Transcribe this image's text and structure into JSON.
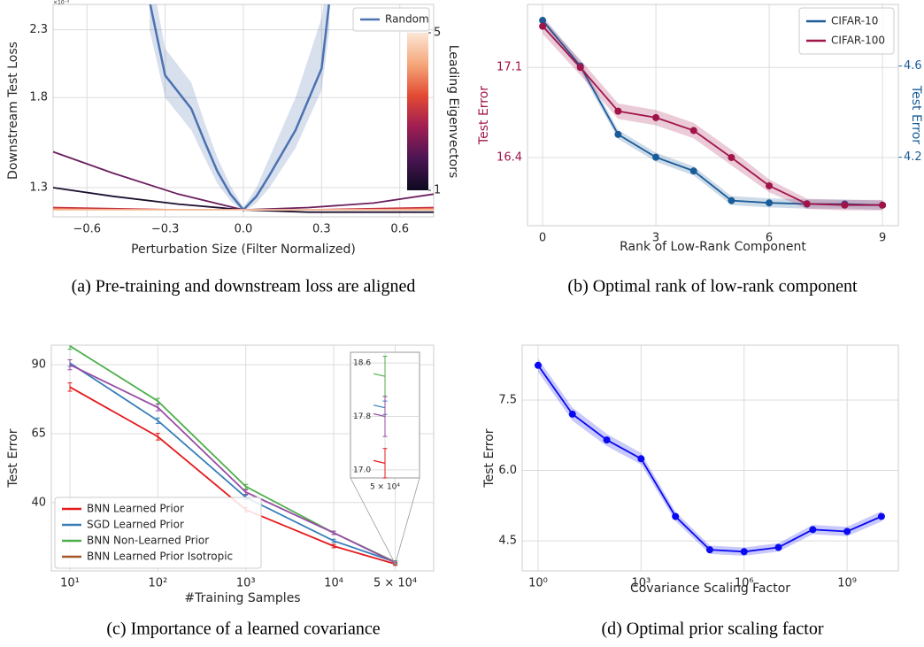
{
  "chart_data": [
    {
      "type": "line",
      "caption": "(a) Pre-training and downstream loss are aligned",
      "xlabel": "Perturbation Size (Filter Normalized)",
      "ylabel": "Downstream Test Loss",
      "offset_label": "×10⁻²",
      "yscale": "log",
      "grid": true,
      "legend": "upper right",
      "xlim": [
        -0.73,
        0.73
      ],
      "ylim": [
        1.17,
        2.52
      ],
      "xticks": [
        {
          "value": -0.6,
          "label": "−0.6"
        },
        {
          "value": -0.3,
          "label": "−0.3"
        },
        {
          "value": 0,
          "label": "0.0"
        },
        0.3,
        0.6
      ],
      "yticks": [
        1.3,
        1.8,
        2.3
      ],
      "series": [
        {
          "name": "Random",
          "color": "#4c72b0",
          "x": [
            -0.36,
            -0.3,
            -0.2,
            -0.15,
            -0.1,
            -0.05,
            0,
            0.05,
            0.1,
            0.2,
            0.3,
            0.33
          ],
          "values": [
            2.55,
            1.95,
            1.73,
            1.54,
            1.38,
            1.27,
            1.2,
            1.26,
            1.36,
            1.6,
            2.0,
            2.55
          ],
          "lower": [
            2.3,
            1.8,
            1.6,
            1.45,
            1.32,
            1.24,
            1.19,
            1.23,
            1.3,
            1.5,
            1.85,
            2.3
          ],
          "upper": [
            2.9,
            2.15,
            1.9,
            1.65,
            1.45,
            1.31,
            1.21,
            1.3,
            1.45,
            1.8,
            2.4,
            2.9
          ]
        },
        {
          "color": "#1c0f2e",
          "x": [
            -0.73,
            -0.5,
            -0.25,
            0,
            0.25,
            0.5,
            0.73
          ],
          "values": [
            1.3,
            1.26,
            1.225,
            1.2,
            1.19,
            1.19,
            1.19
          ]
        },
        {
          "color": "#6b1f5e",
          "x": [
            -0.73,
            -0.5,
            -0.25,
            0,
            0.25,
            0.5,
            0.73
          ],
          "values": [
            1.48,
            1.37,
            1.27,
            1.2,
            1.21,
            1.23,
            1.27
          ]
        },
        {
          "color": "#c4303f",
          "x": [
            -0.73,
            -0.5,
            -0.25,
            0,
            0.25,
            0.5,
            0.73
          ],
          "values": [
            1.21,
            1.205,
            1.2,
            1.2,
            1.2,
            1.205,
            1.21
          ]
        },
        {
          "color": "#f07050",
          "x": [
            -0.73,
            -0.5,
            -0.25,
            0,
            0.25,
            0.5,
            0.73
          ],
          "values": [
            1.205,
            1.2,
            1.2,
            1.2,
            1.2,
            1.2,
            1.205
          ]
        },
        {
          "color": "#f6c9a8",
          "x": [
            -0.73,
            -0.5,
            -0.25,
            0,
            0.25,
            0.5,
            0.73
          ],
          "values": [
            1.2,
            1.2,
            1.2,
            1.2,
            1.2,
            1.2,
            1.2
          ]
        }
      ],
      "colorbar": {
        "label": "Leading Eigenvectors",
        "ticks": [
          1,
          5
        ],
        "colors": [
          "#0d0a1e",
          "#4a1553",
          "#9e1d53",
          "#e34a33",
          "#f5a77a",
          "#fbe6d6"
        ]
      }
    },
    {
      "type": "line",
      "caption": "(b) Optimal rank of low-rank component",
      "xlabel": "Rank of Low-Rank Component",
      "ylabel": "Test Error",
      "y2label": "Test Error",
      "grid": true,
      "markers": true,
      "legend": "upper right",
      "xlim": [
        -0.4,
        9.42
      ],
      "ylim": [
        15.87,
        17.59
      ],
      "y2lim": [
        3.9,
        4.87
      ],
      "xticks": [
        0,
        3,
        6,
        9
      ],
      "yticks": [
        16.4,
        17.1
      ],
      "y2ticks": [
        4.2,
        4.6
      ],
      "x": [
        0,
        1,
        2,
        3,
        4,
        5,
        6,
        7,
        8,
        9
      ],
      "series": [
        {
          "name": "CIFAR-10",
          "color": "#1a5c99",
          "axis": "y2",
          "values": [
            4.8,
            4.6,
            4.3,
            4.2,
            4.14,
            4.01,
            4.0,
            3.995,
            3.995,
            3.99
          ],
          "lower": [
            4.78,
            4.58,
            4.28,
            4.18,
            4.12,
            3.99,
            3.98,
            3.975,
            3.975,
            3.97
          ],
          "upper": [
            4.82,
            4.62,
            4.32,
            4.22,
            4.16,
            4.03,
            4.02,
            4.015,
            4.015,
            4.01
          ]
        },
        {
          "name": "CIFAR-100",
          "color": "#a0144a",
          "values": [
            17.42,
            17.1,
            16.76,
            16.71,
            16.61,
            16.4,
            16.18,
            16.04,
            16.03,
            16.03
          ],
          "lower": [
            17.36,
            17.04,
            16.7,
            16.65,
            16.55,
            16.34,
            16.13,
            16.0,
            15.99,
            15.99
          ],
          "upper": [
            17.48,
            17.16,
            16.82,
            16.77,
            16.67,
            16.46,
            16.23,
            16.08,
            16.07,
            16.07
          ]
        }
      ]
    },
    {
      "type": "line",
      "caption": "(c) Importance of a learned covariance",
      "xlabel": "#Training Samples",
      "ylabel": "Test Error",
      "xscale": "log",
      "grid": true,
      "legend": "lower left",
      "xlim": [
        6.15,
        136800
      ],
      "ylim": [
        15.2,
        97.1
      ],
      "xticks": [
        {
          "value": 10,
          "label": "10¹"
        },
        {
          "value": 100,
          "label": "10²"
        },
        {
          "value": 1000,
          "label": "10³"
        },
        {
          "value": 10000,
          "label": "10⁴"
        },
        {
          "value": 50000,
          "label": "5 × 10⁴"
        }
      ],
      "yticks": [
        40,
        65,
        90
      ],
      "x": [
        10,
        100,
        1000,
        10000,
        50000
      ],
      "series": [
        {
          "name": "BNN Learned Prior",
          "color": "#e41a1c",
          "values": [
            81.9,
            63.9,
            37.4,
            24.2,
            17.7
          ],
          "errors": [
            1.5,
            1.2,
            0.8,
            0.6,
            0.5
          ]
        },
        {
          "name": "SGD Learned Prior",
          "color": "#377eb8",
          "values": [
            90.6,
            69.7,
            41.9,
            26.1,
            18.4
          ],
          "errors": [
            1.2,
            1.0,
            0.8,
            0.6,
            0.5
          ]
        },
        {
          "name": "BNN Non-Learned Prior",
          "color": "#4daf4a",
          "values": [
            96.8,
            76.8,
            45.8,
            29.0,
            18.4
          ],
          "errors": [
            1.2,
            1.0,
            0.8,
            0.6,
            0.5
          ]
        },
        {
          "name": "BNN Learned Prior Isotropic",
          "color": "#a65628",
          "values": [
            null,
            null,
            null,
            null,
            17.7
          ],
          "errors": [
            null,
            null,
            null,
            null,
            0.5
          ]
        },
        {
          "color": "#984ea3",
          "values": [
            90.0,
            74.5,
            43.8,
            29.0,
            18.2
          ],
          "errors": [
            1.8,
            1.2,
            0.8,
            0.6,
            0.5
          ]
        }
      ],
      "inset": {
        "xticks": [
          {
            "value": 50000,
            "label": "5 × 10⁴"
          }
        ],
        "ylim": [
          16.88,
          18.76
        ],
        "yticks": [
          {
            "value": 17,
            "label": "17.0"
          },
          17.8,
          18.6
        ],
        "values": [
          17.1,
          17.93,
          18.4,
          null,
          17.8
        ],
        "errors": [
          0.22,
          0.1,
          0.3,
          null,
          0.3
        ]
      }
    },
    {
      "type": "line",
      "caption": "(d) Optimal prior scaling factor",
      "xlabel": "Covariance Scaling Factor",
      "ylabel": "Test Error",
      "xscale": "log",
      "grid": true,
      "markers": true,
      "xlim": [
        0.344,
        31000000000
      ],
      "ylim": [
        3.86,
        8.67
      ],
      "xticks": [
        {
          "value": 1,
          "label": "10⁰"
        },
        {
          "value": 1000,
          "label": "10³"
        },
        {
          "value": 1000000,
          "label": "10⁶"
        },
        {
          "value": 1000000000,
          "label": "10⁹"
        }
      ],
      "yticks": [
        4.5,
        {
          "value": 6,
          "label": "6.0"
        },
        7.5
      ],
      "x": [
        1,
        10,
        100,
        1000,
        10000,
        100000,
        1000000,
        10000000,
        100000000,
        1000000000,
        10000000000
      ],
      "series": [
        {
          "color": "#0a0af0",
          "values": [
            8.24,
            7.2,
            6.65,
            6.25,
            5.02,
            4.31,
            4.27,
            4.36,
            4.74,
            4.7,
            5.02
          ],
          "lower": [
            8.1,
            7.06,
            6.52,
            6.13,
            4.92,
            4.22,
            4.18,
            4.27,
            4.64,
            4.6,
            4.91
          ],
          "upper": [
            8.38,
            7.34,
            6.78,
            6.37,
            5.12,
            4.4,
            4.36,
            4.45,
            4.84,
            4.8,
            5.13
          ]
        }
      ]
    }
  ]
}
